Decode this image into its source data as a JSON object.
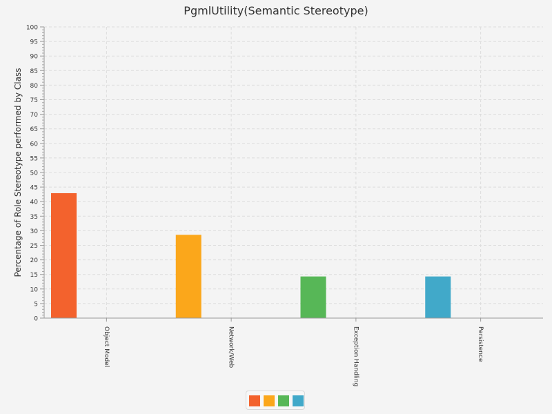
{
  "chart_data": {
    "type": "bar",
    "title": "PgmlUtility(Semantic Stereotype)",
    "xlabel": "",
    "ylabel": "Percentage of Role Stereotype performed by Class",
    "ylim": [
      0,
      100
    ],
    "y_major_step": 5,
    "y_minor_step": 1,
    "categories": [
      "Object Model",
      "Network/Web",
      "Exception Handling",
      "Persistence"
    ],
    "values": [
      42.9,
      28.6,
      14.3,
      14.3
    ],
    "colors": [
      "#f3622d",
      "#fba71b",
      "#57b757",
      "#41a9c9"
    ],
    "grid": true,
    "legend": "bottom-center"
  }
}
